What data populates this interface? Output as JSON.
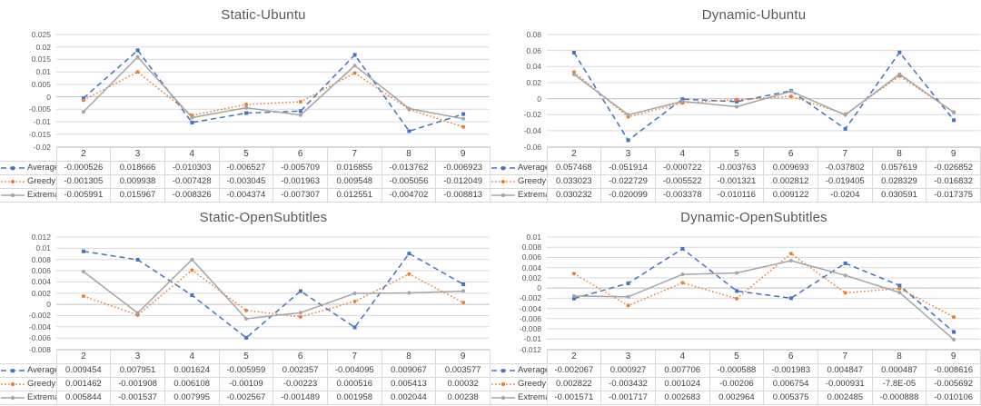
{
  "layout_colors": {
    "background": "#FFFFFF",
    "grid_color": "#D9D9D9",
    "zero_line_color": "#BFBFBF",
    "axis_text_color": "#595959",
    "title_color": "#595959",
    "table_text_color": "#3F3F3F",
    "table_border_color": "#D9D9D9"
  },
  "chart_data": [
    {
      "type": "line",
      "title": "Static-Ubuntu",
      "xlabel": "",
      "ylabel": "",
      "categories": [
        "2",
        "3",
        "4",
        "5",
        "6",
        "7",
        "8",
        "9"
      ],
      "ylim": [
        -0.02,
        0.025
      ],
      "yticks": [
        "0.025",
        "0.02",
        "0.015",
        "0.01",
        "0.005",
        "0",
        "-0.005",
        "-0.01",
        "-0.015",
        "-0.02"
      ],
      "grid": true,
      "legend_position": "table-left",
      "series": [
        {
          "name": "Average",
          "color": "#4472C4",
          "line": "dashed",
          "marker": "square",
          "values": [
            -0.000526,
            0.018666,
            -0.010303,
            -0.006527,
            -0.005709,
            0.016855,
            -0.013762,
            -0.006923
          ],
          "display": [
            "-0.000526",
            "0.018666",
            "-0.010303",
            "-0.006527",
            "-0.005709",
            "0.016855",
            "-0.013762",
            "-0.006923"
          ]
        },
        {
          "name": "Greedy",
          "color": "#ED7D31",
          "line": "dotted",
          "marker": "circle",
          "values": [
            -0.001305,
            0.009938,
            -0.007428,
            -0.003045,
            -0.001963,
            0.009548,
            -0.005056,
            -0.012049
          ],
          "display": [
            "-0.001305",
            "0.009938",
            "-0.007428",
            "-0.003045",
            "-0.001963",
            "0.009548",
            "-0.005056",
            "-0.012049"
          ]
        },
        {
          "name": "Extrema",
          "color": "#A5A5A5",
          "line": "solid",
          "marker": "circle",
          "values": [
            -0.005991,
            0.015967,
            -0.008326,
            -0.004374,
            -0.007307,
            0.012551,
            -0.004702,
            -0.008813
          ],
          "display": [
            "-0.005991",
            "0.015967",
            "-0.008326",
            "-0.004374",
            "-0.007307",
            "0.012551",
            "-0.004702",
            "-0.008813"
          ]
        }
      ]
    },
    {
      "type": "line",
      "title": "Dynamic-Ubuntu",
      "xlabel": "",
      "ylabel": "",
      "categories": [
        "2",
        "3",
        "4",
        "5",
        "6",
        "7",
        "8",
        "9"
      ],
      "ylim": [
        -0.06,
        0.08
      ],
      "yticks": [
        "0.08",
        "0.06",
        "0.04",
        "0.02",
        "0",
        "-0.02",
        "-0.04",
        "-0.06"
      ],
      "grid": true,
      "legend_position": "table-left",
      "series": [
        {
          "name": "Average",
          "color": "#4472C4",
          "line": "dashed",
          "marker": "square",
          "values": [
            0.057468,
            -0.051914,
            -0.000722,
            -0.003763,
            0.009693,
            -0.037802,
            0.057619,
            -0.026852
          ],
          "display": [
            "0.057468",
            "-0.051914",
            "-0.000722",
            "-0.003763",
            "0.009693",
            "-0.037802",
            "0.057619",
            "-0.026852"
          ]
        },
        {
          "name": "Greedy",
          "color": "#ED7D31",
          "line": "dotted",
          "marker": "circle",
          "values": [
            0.033023,
            -0.022729,
            -0.005522,
            -0.001321,
            0.002812,
            -0.019405,
            0.028329,
            -0.016832
          ],
          "display": [
            "0.033023",
            "-0.022729",
            "-0.005522",
            "-0.001321",
            "0.002812",
            "-0.019405",
            "0.028329",
            "-0.016832"
          ]
        },
        {
          "name": "Extrema",
          "color": "#A5A5A5",
          "line": "solid",
          "marker": "circle",
          "values": [
            0.030232,
            -0.020099,
            -0.003378,
            -0.010116,
            0.009122,
            -0.0204,
            0.030591,
            -0.017375
          ],
          "display": [
            "0.030232",
            "-0.020099",
            "-0.003378",
            "-0.010116",
            "0.009122",
            "-0.0204",
            "0.030591",
            "-0.017375"
          ]
        }
      ]
    },
    {
      "type": "line",
      "title": "Static-OpenSubtitles",
      "xlabel": "",
      "ylabel": "",
      "categories": [
        "2",
        "3",
        "4",
        "5",
        "6",
        "7",
        "8",
        "9"
      ],
      "ylim": [
        -0.008,
        0.012
      ],
      "yticks": [
        "0.012",
        "0.01",
        "0.008",
        "0.006",
        "0.004",
        "0.002",
        "0",
        "-0.002",
        "-0.004",
        "-0.006",
        "-0.008"
      ],
      "grid": true,
      "legend_position": "table-left",
      "series": [
        {
          "name": "Average",
          "color": "#4472C4",
          "line": "dashed",
          "marker": "square",
          "values": [
            0.009454,
            0.007951,
            0.001624,
            -0.005959,
            0.002357,
            -0.004095,
            0.009067,
            0.003577
          ],
          "display": [
            "0.009454",
            "0.007951",
            "0.001624",
            "-0.005959",
            "0.002357",
            "-0.004095",
            "0.009067",
            "0.003577"
          ]
        },
        {
          "name": "Greedy",
          "color": "#ED7D31",
          "line": "dotted",
          "marker": "circle",
          "values": [
            0.001462,
            -0.001908,
            0.006108,
            -0.00109,
            -0.00223,
            0.000516,
            0.005413,
            0.00032
          ],
          "display": [
            "0.001462",
            "-0.001908",
            "0.006108",
            "-0.00109",
            "-0.00223",
            "0.000516",
            "0.005413",
            "0.00032"
          ]
        },
        {
          "name": "Extrema",
          "color": "#A5A5A5",
          "line": "solid",
          "marker": "circle",
          "values": [
            0.005844,
            -0.001537,
            0.007995,
            -0.002567,
            -0.001489,
            0.001958,
            0.002044,
            0.00238
          ],
          "display": [
            "0.005844",
            "-0.001537",
            "0.007995",
            "-0.002567",
            "-0.001489",
            "0.001958",
            "0.002044",
            "0.00238"
          ]
        }
      ]
    },
    {
      "type": "line",
      "title": "Dynamic-OpenSubtitles",
      "xlabel": "",
      "ylabel": "",
      "categories": [
        "2",
        "3",
        "4",
        "5",
        "6",
        "7",
        "8",
        "9"
      ],
      "ylim": [
        -0.012,
        0.01
      ],
      "yticks": [
        "0.01",
        "0.008",
        "0.006",
        "0.004",
        "0.002",
        "0",
        "-0.002",
        "-0.004",
        "-0.006",
        "-0.008",
        "-0.01",
        "-0.012"
      ],
      "grid": true,
      "legend_position": "table-left",
      "series": [
        {
          "name": "Average",
          "color": "#4472C4",
          "line": "dashed",
          "marker": "square",
          "values": [
            -0.002067,
            0.000927,
            0.007706,
            -0.000588,
            -0.001983,
            0.004847,
            0.000487,
            -0.008616
          ],
          "display": [
            "-0.002067",
            "0.000927",
            "0.007706",
            "-0.000588",
            "-0.001983",
            "0.004847",
            "0.000487",
            "-0.008616"
          ]
        },
        {
          "name": "Greedy",
          "color": "#ED7D31",
          "line": "dotted",
          "marker": "circle",
          "values": [
            0.002822,
            -0.003432,
            0.001024,
            -0.00206,
            0.006754,
            -0.000931,
            -7.8e-05,
            -0.005692
          ],
          "display": [
            "0.002822",
            "-0.003432",
            "0.001024",
            "-0.00206",
            "0.006754",
            "-0.000931",
            "-7.8E-05",
            "-0.005692"
          ]
        },
        {
          "name": "Extrema",
          "color": "#A5A5A5",
          "line": "solid",
          "marker": "circle",
          "values": [
            -0.001571,
            -0.001717,
            0.002683,
            0.002964,
            0.005375,
            0.002485,
            -0.000888,
            -0.010106
          ],
          "display": [
            "-0.001571",
            "-0.001717",
            "0.002683",
            "0.002964",
            "0.005375",
            "0.002485",
            "-0.000888",
            "-0.010106"
          ]
        }
      ]
    }
  ]
}
